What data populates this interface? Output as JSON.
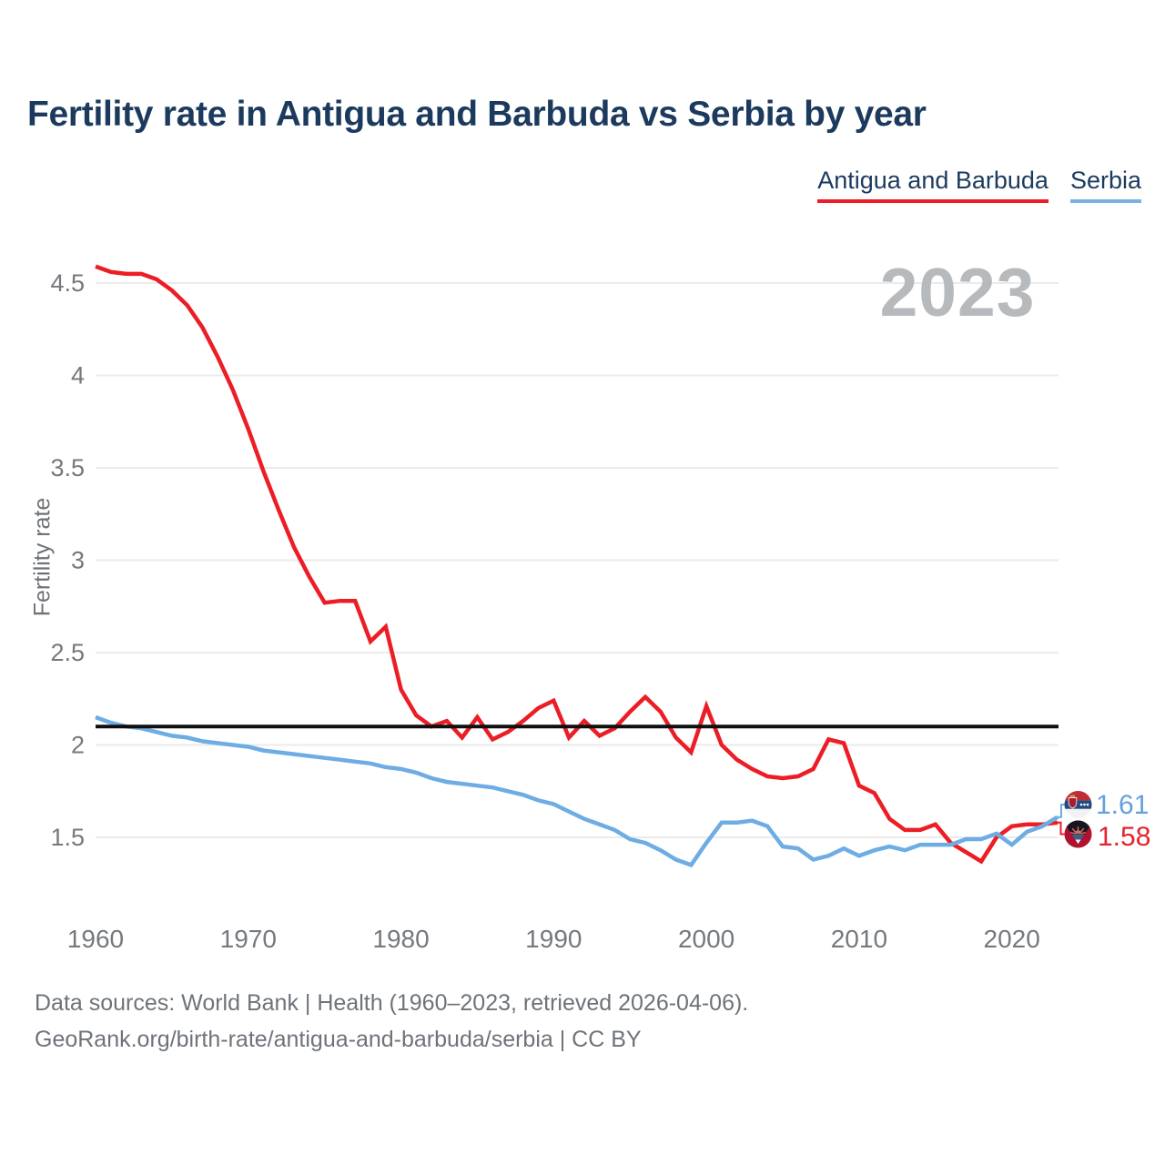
{
  "page": {
    "title": "Fertility rate in Antigua and Barbuda vs Serbia by year",
    "watermark_year": "2023"
  },
  "legend": [
    {
      "label": "Antigua and Barbuda",
      "color": "#ec1d25"
    },
    {
      "label": "Serbia",
      "color": "#7ab1e3"
    }
  ],
  "end_labels": [
    {
      "series": "Serbia",
      "value": "1.61",
      "color": "#64a0dc",
      "flag": "serbia-flag-icon"
    },
    {
      "series": "Antigua and Barbuda",
      "value": "1.58",
      "color": "#e3242b",
      "flag": "antigua-and-barbuda-flag-icon"
    }
  ],
  "footer": {
    "line1": "Data sources: World Bank | Health (1960–2023, retrieved 2026-04-06).",
    "line2": "GeoRank.org/birth-rate/antigua-and-barbuda/serbia | CC BY"
  },
  "chart_data": {
    "type": "line",
    "title": "Fertility rate in Antigua and Barbuda vs Serbia by year",
    "xlabel": "",
    "ylabel": "Fertility rate",
    "xlim": [
      1960,
      2023
    ],
    "ylim": [
      1.5,
      4.5
    ],
    "grid": true,
    "legend_position": "top-right",
    "y_ticks": [
      4.5,
      4,
      3.5,
      3,
      2.5,
      2,
      1.5
    ],
    "x_ticks": [
      1960,
      1970,
      1980,
      1990,
      2000,
      2010,
      2020
    ],
    "reference_line": {
      "value": 2.1,
      "color": "#0f0f0f"
    },
    "x": [
      1960,
      1961,
      1962,
      1963,
      1964,
      1965,
      1966,
      1967,
      1968,
      1969,
      1970,
      1971,
      1972,
      1973,
      1974,
      1975,
      1976,
      1977,
      1978,
      1979,
      1980,
      1981,
      1982,
      1983,
      1984,
      1985,
      1986,
      1987,
      1988,
      1989,
      1990,
      1991,
      1992,
      1993,
      1994,
      1995,
      1996,
      1997,
      1998,
      1999,
      2000,
      2001,
      2002,
      2003,
      2004,
      2005,
      2006,
      2007,
      2008,
      2009,
      2010,
      2011,
      2012,
      2013,
      2014,
      2015,
      2016,
      2017,
      2018,
      2019,
      2020,
      2021,
      2022,
      2023
    ],
    "series": [
      {
        "name": "Antigua and Barbuda",
        "color": "#ec1d25",
        "values": [
          4.59,
          4.56,
          4.55,
          4.55,
          4.52,
          4.46,
          4.38,
          4.26,
          4.1,
          3.92,
          3.71,
          3.48,
          3.27,
          3.07,
          2.91,
          2.77,
          2.78,
          2.78,
          2.56,
          2.64,
          2.3,
          2.16,
          2.1,
          2.13,
          2.04,
          2.15,
          2.03,
          2.07,
          2.13,
          2.2,
          2.24,
          2.04,
          2.13,
          2.05,
          2.09,
          2.18,
          2.26,
          2.18,
          2.04,
          1.96,
          2.21,
          2.0,
          1.92,
          1.87,
          1.83,
          1.82,
          1.83,
          1.87,
          2.03,
          2.01,
          1.78,
          1.74,
          1.6,
          1.54,
          1.54,
          1.57,
          1.47,
          1.42,
          1.37,
          1.5,
          1.56,
          1.57,
          1.57,
          1.58
        ]
      },
      {
        "name": "Serbia",
        "color": "#6eace4",
        "values": [
          2.15,
          2.12,
          2.1,
          2.09,
          2.07,
          2.05,
          2.04,
          2.02,
          2.01,
          2.0,
          1.99,
          1.97,
          1.96,
          1.95,
          1.94,
          1.93,
          1.92,
          1.91,
          1.9,
          1.88,
          1.87,
          1.85,
          1.82,
          1.8,
          1.79,
          1.78,
          1.77,
          1.75,
          1.73,
          1.7,
          1.68,
          1.64,
          1.6,
          1.57,
          1.54,
          1.49,
          1.47,
          1.43,
          1.38,
          1.35,
          1.47,
          1.58,
          1.58,
          1.59,
          1.56,
          1.45,
          1.44,
          1.38,
          1.4,
          1.44,
          1.4,
          1.43,
          1.45,
          1.43,
          1.46,
          1.46,
          1.46,
          1.49,
          1.49,
          1.52,
          1.46,
          1.53,
          1.56,
          1.61
        ]
      }
    ]
  }
}
